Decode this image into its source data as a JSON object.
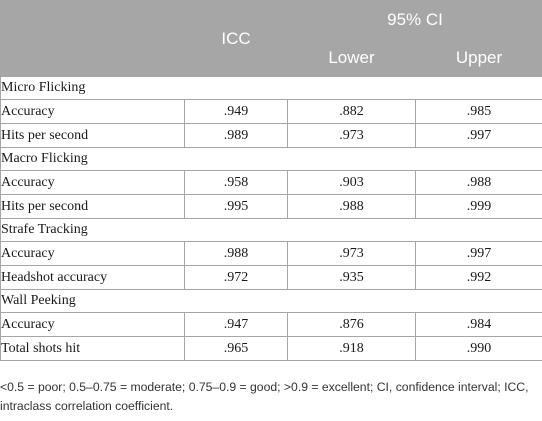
{
  "header": {
    "icc": "ICC",
    "ci": "95% CI",
    "lower": "Lower",
    "upper": "Upper"
  },
  "groups": [
    {
      "name": "Micro Flicking",
      "rows": [
        {
          "label": "Accuracy",
          "icc": ".949",
          "lower": ".882",
          "upper": ".985"
        },
        {
          "label": "Hits per second",
          "icc": ".989",
          "lower": ".973",
          "upper": ".997"
        }
      ]
    },
    {
      "name": "Macro Flicking",
      "rows": [
        {
          "label": "Accuracy",
          "icc": ".958",
          "lower": ".903",
          "upper": ".988"
        },
        {
          "label": "Hits per second",
          "icc": ".995",
          "lower": ".988",
          "upper": ".999"
        }
      ]
    },
    {
      "name": "Strafe Tracking",
      "rows": [
        {
          "label": "Accuracy",
          "icc": ".988",
          "lower": ".973",
          "upper": ".997"
        },
        {
          "label": "Headshot accuracy",
          "icc": ".972",
          "lower": ".935",
          "upper": ".992"
        }
      ]
    },
    {
      "name": "Wall Peeking",
      "rows": [
        {
          "label": "Accuracy",
          "icc": ".947",
          "lower": ".876",
          "upper": ".984"
        },
        {
          "label": "Total shots hit",
          "icc": ".965",
          "lower": ".918",
          "upper": ".990"
        }
      ]
    }
  ],
  "footnote": "<0.5 = poor; 0.5–0.75 = moderate; 0.75–0.9 = good; >0.9 = excellent; CI, confidence interval; ICC, intraclass correlation coefficient."
}
